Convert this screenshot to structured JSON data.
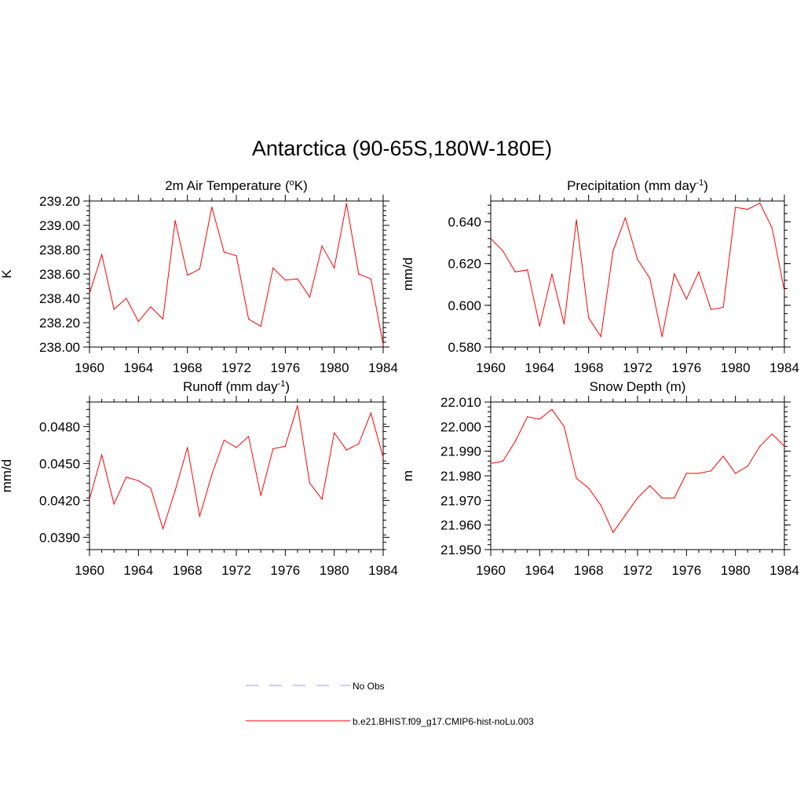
{
  "main_title": "Antarctica (90-65S,180W-180E)",
  "legend": {
    "items": [
      {
        "label": "No Obs",
        "color": "#9999ff",
        "dash": true
      },
      {
        "label": "b.e21.BHIST.f09_g17.CMIP6-hist-noLu.003",
        "color": "#ff0000",
        "dash": false
      }
    ]
  },
  "chart_data": [
    {
      "type": "line",
      "title": "2m Air Temperature (°K)",
      "title_parts": [
        "2m Air Temperature (",
        "o",
        "K)"
      ],
      "ylabel": "K",
      "xlim": [
        1960,
        1984
      ],
      "ylim": [
        238.0,
        239.2
      ],
      "xticks": [
        "1960",
        "1964",
        "1968",
        "1972",
        "1976",
        "1980",
        "1984"
      ],
      "yticks": [
        "238.00",
        "238.20",
        "238.40",
        "238.60",
        "238.80",
        "239.00",
        "239.20"
      ],
      "series": [
        {
          "color": "#ff0000",
          "x": [
            1960,
            1961,
            1962,
            1963,
            1964,
            1965,
            1966,
            1967,
            1968,
            1969,
            1970,
            1971,
            1972,
            1973,
            1974,
            1975,
            1976,
            1977,
            1978,
            1979,
            1980,
            1981,
            1982,
            1983,
            1984
          ],
          "y": [
            238.44,
            238.76,
            238.31,
            238.4,
            238.21,
            238.33,
            238.23,
            239.04,
            238.59,
            238.64,
            239.15,
            238.78,
            238.75,
            238.23,
            238.17,
            238.65,
            238.55,
            238.56,
            238.41,
            238.83,
            238.65,
            239.18,
            238.6,
            238.56,
            238.02
          ]
        }
      ]
    },
    {
      "type": "line",
      "title": "Precipitation (mm day-1)",
      "title_parts": [
        "Precipitation (mm day",
        "-1",
        ")"
      ],
      "ylabel": "mm/d",
      "xlim": [
        1960,
        1984
      ],
      "ylim": [
        0.58,
        0.65
      ],
      "xticks": [
        "1960",
        "1964",
        "1968",
        "1972",
        "1976",
        "1980",
        "1984"
      ],
      "yticks": [
        "0.580",
        "0.600",
        "0.620",
        "0.640"
      ],
      "series": [
        {
          "color": "#ff0000",
          "x": [
            1960,
            1961,
            1962,
            1963,
            1964,
            1965,
            1966,
            1967,
            1968,
            1969,
            1970,
            1971,
            1972,
            1973,
            1974,
            1975,
            1976,
            1977,
            1978,
            1979,
            1980,
            1981,
            1982,
            1983,
            1984
          ],
          "y": [
            0.632,
            0.626,
            0.616,
            0.617,
            0.59,
            0.615,
            0.591,
            0.641,
            0.594,
            0.585,
            0.626,
            0.642,
            0.622,
            0.613,
            0.585,
            0.615,
            0.603,
            0.616,
            0.598,
            0.599,
            0.647,
            0.646,
            0.649,
            0.637,
            0.607
          ]
        }
      ]
    },
    {
      "type": "line",
      "title": "Runoff (mm day-1)",
      "title_parts": [
        "Runoff (mm day",
        "-1",
        ")"
      ],
      "ylabel": "mm/d",
      "xlim": [
        1960,
        1984
      ],
      "ylim": [
        0.038,
        0.05
      ],
      "xticks": [
        "1960",
        "1964",
        "1968",
        "1972",
        "1976",
        "1980",
        "1984"
      ],
      "yticks": [
        "0.0390",
        "0.0420",
        "0.0450",
        "0.0480"
      ],
      "series": [
        {
          "color": "#ff0000",
          "x": [
            1960,
            1961,
            1962,
            1963,
            1964,
            1965,
            1966,
            1967,
            1968,
            1969,
            1970,
            1971,
            1972,
            1973,
            1974,
            1975,
            1976,
            1977,
            1978,
            1979,
            1980,
            1981,
            1982,
            1983,
            1984
          ],
          "y": [
            0.0421,
            0.0457,
            0.0417,
            0.0439,
            0.0436,
            0.043,
            0.0397,
            0.0428,
            0.0463,
            0.0407,
            0.0441,
            0.0469,
            0.0463,
            0.0472,
            0.0424,
            0.0462,
            0.0464,
            0.0497,
            0.0434,
            0.0421,
            0.0475,
            0.0461,
            0.0466,
            0.0491,
            0.0455
          ]
        }
      ]
    },
    {
      "type": "line",
      "title": "Snow Depth (m)",
      "title_parts": [
        "Snow Depth (m)",
        "",
        ""
      ],
      "ylabel": "m",
      "xlim": [
        1960,
        1984
      ],
      "ylim": [
        21.95,
        22.01
      ],
      "xticks": [
        "1960",
        "1964",
        "1968",
        "1972",
        "1976",
        "1980",
        "1984"
      ],
      "yticks": [
        "21.950",
        "21.960",
        "21.970",
        "21.980",
        "21.990",
        "22.000",
        "22.010"
      ],
      "series": [
        {
          "color": "#ff0000",
          "x": [
            1960,
            1961,
            1962,
            1963,
            1964,
            1965,
            1966,
            1967,
            1968,
            1969,
            1970,
            1971,
            1972,
            1973,
            1974,
            1975,
            1976,
            1977,
            1978,
            1979,
            1980,
            1981,
            1982,
            1983,
            1984
          ],
          "y": [
            21.985,
            21.986,
            21.994,
            22.004,
            22.003,
            22.007,
            22.0,
            21.979,
            21.975,
            21.968,
            21.957,
            21.964,
            21.971,
            21.976,
            21.971,
            21.971,
            21.981,
            21.981,
            21.982,
            21.988,
            21.981,
            21.984,
            21.992,
            21.997,
            21.992
          ]
        }
      ]
    }
  ]
}
